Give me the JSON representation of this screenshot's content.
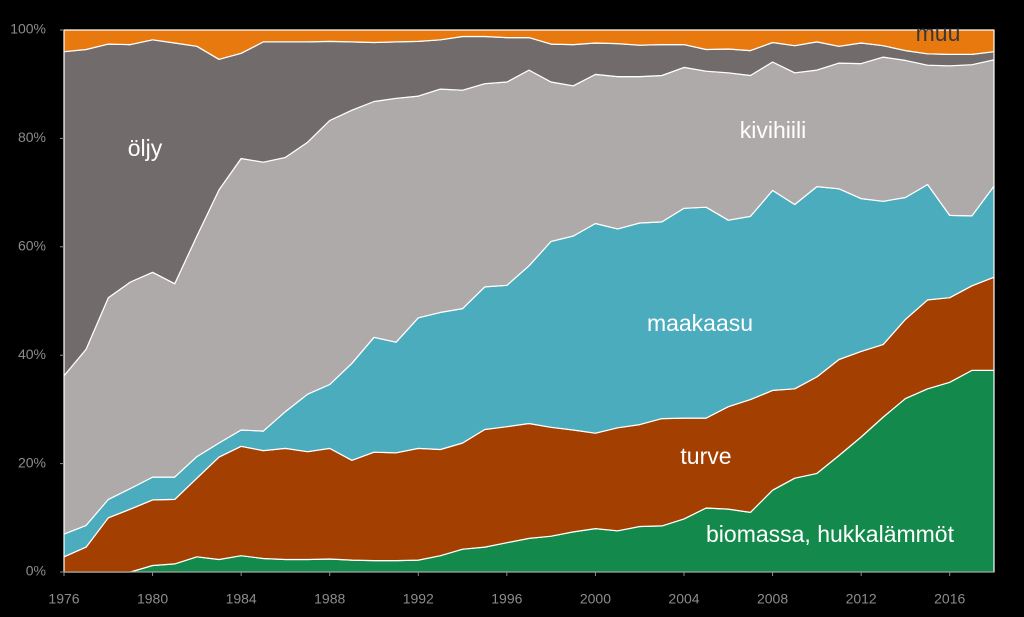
{
  "chart_data": {
    "type": "stacked-area",
    "x": [
      1976,
      1977,
      1978,
      1979,
      1980,
      1981,
      1982,
      1983,
      1984,
      1985,
      1986,
      1987,
      1988,
      1989,
      1990,
      1991,
      1992,
      1993,
      1994,
      1995,
      1996,
      1997,
      1998,
      1999,
      2000,
      2001,
      2002,
      2003,
      2004,
      2005,
      2006,
      2007,
      2008,
      2009,
      2010,
      2011,
      2012,
      2013,
      2014,
      2015,
      2016,
      2017,
      2018
    ],
    "xlim": [
      1976,
      2018
    ],
    "xticks": [
      1976,
      1980,
      1984,
      1988,
      1992,
      1996,
      2000,
      2004,
      2008,
      2012,
      2016
    ],
    "ylim": [
      0,
      100
    ],
    "yticks": [
      {
        "value": 0,
        "label": "0%"
      },
      {
        "value": 20,
        "label": "20%"
      },
      {
        "value": 40,
        "label": "40%"
      },
      {
        "value": 60,
        "label": "60%"
      },
      {
        "value": 80,
        "label": "80%"
      },
      {
        "value": 100,
        "label": "100%"
      }
    ],
    "series": [
      {
        "name": "biomassa, hukkalämmöt",
        "color": "#138a4b",
        "values": [
          0,
          0,
          0,
          0,
          1.2,
          1.5,
          2.8,
          2.3,
          3.0,
          2.5,
          2.3,
          2.3,
          2.4,
          2.2,
          2.1,
          2.1,
          2.2,
          3.0,
          4.2,
          4.6,
          5.4,
          6.2,
          6.6,
          7.4,
          8.0,
          7.6,
          8.4,
          8.5,
          9.8,
          11.8,
          11.6,
          11.0,
          15.1,
          17.3,
          18.2,
          21.5,
          24.9,
          28.6,
          32.0,
          33.8,
          35.0,
          37.2,
          37.2
        ]
      },
      {
        "name": "turve",
        "color": "#a33f00",
        "values": [
          2.8,
          4.6,
          10.0,
          11.6,
          12.1,
          11.9,
          14.5,
          18.9,
          20.2,
          19.9,
          20.5,
          19.9,
          20.4,
          18.4,
          20.0,
          19.9,
          20.6,
          19.6,
          19.6,
          21.7,
          21.4,
          21.2,
          20.1,
          18.8,
          17.6,
          19.0,
          18.8,
          19.8,
          18.6,
          16.6,
          18.9,
          20.8,
          18.4,
          16.5,
          17.8,
          17.7,
          15.8,
          13.4,
          14.6,
          16.4,
          15.6,
          15.6,
          17.2
        ]
      },
      {
        "name": "maakaasu",
        "color": "#4bacbd",
        "values": [
          4.2,
          4.0,
          3.4,
          3.8,
          4.2,
          4.1,
          4.0,
          2.6,
          3.0,
          3.6,
          6.8,
          10.6,
          11.8,
          17.9,
          21.2,
          20.4,
          24.1,
          25.3,
          24.8,
          26.3,
          26.1,
          29.1,
          34.3,
          35.8,
          38.7,
          36.7,
          37.2,
          36.3,
          38.7,
          38.9,
          34.4,
          33.8,
          36.9,
          34.0,
          35.1,
          31.5,
          28.2,
          26.4,
          22.5,
          21.3,
          15.2,
          12.9,
          16.8
        ]
      },
      {
        "name": "kivihiili",
        "color": "#aeaaa9",
        "values": [
          29.2,
          32.5,
          37.2,
          38.1,
          37.8,
          35.7,
          40.7,
          46.7,
          50.1,
          49.6,
          46.9,
          46.5,
          48.7,
          46.7,
          43.5,
          45.0,
          40.9,
          41.2,
          40.3,
          37.5,
          37.5,
          36.1,
          29.4,
          27.7,
          27.5,
          28.1,
          27.0,
          27.0,
          26.0,
          25.1,
          27.2,
          26.0,
          23.7,
          24.3,
          21.5,
          23.2,
          24.9,
          26.6,
          25.3,
          22.0,
          27.6,
          27.9,
          23.3
        ]
      },
      {
        "name": "öljy",
        "color": "#716c6b",
        "values": [
          59.8,
          55.3,
          46.8,
          43.8,
          42.9,
          44.4,
          35.0,
          24.1,
          19.4,
          22.2,
          21.3,
          18.5,
          14.6,
          12.6,
          10.9,
          10.4,
          10.1,
          9.1,
          9.9,
          8.7,
          8.2,
          6.0,
          7.0,
          7.6,
          5.8,
          6.1,
          5.8,
          5.7,
          4.2,
          4.0,
          4.4,
          4.6,
          3.6,
          5.0,
          5.2,
          3.1,
          3.8,
          2.1,
          1.8,
          2.1,
          2.1,
          1.9,
          1.5
        ]
      },
      {
        "name": "muu",
        "color": "#e8790f",
        "values": [
          4.0,
          3.6,
          2.6,
          2.7,
          1.8,
          2.4,
          3.0,
          5.4,
          4.3,
          2.2,
          2.2,
          2.2,
          2.1,
          2.2,
          2.3,
          2.2,
          2.1,
          1.8,
          1.2,
          1.2,
          1.4,
          1.4,
          2.6,
          2.7,
          2.4,
          2.5,
          2.8,
          2.7,
          2.7,
          3.6,
          3.5,
          3.8,
          2.3,
          2.9,
          2.2,
          3.0,
          2.4,
          2.9,
          3.8,
          4.4,
          4.5,
          4.5,
          4.0
        ]
      }
    ]
  }
}
